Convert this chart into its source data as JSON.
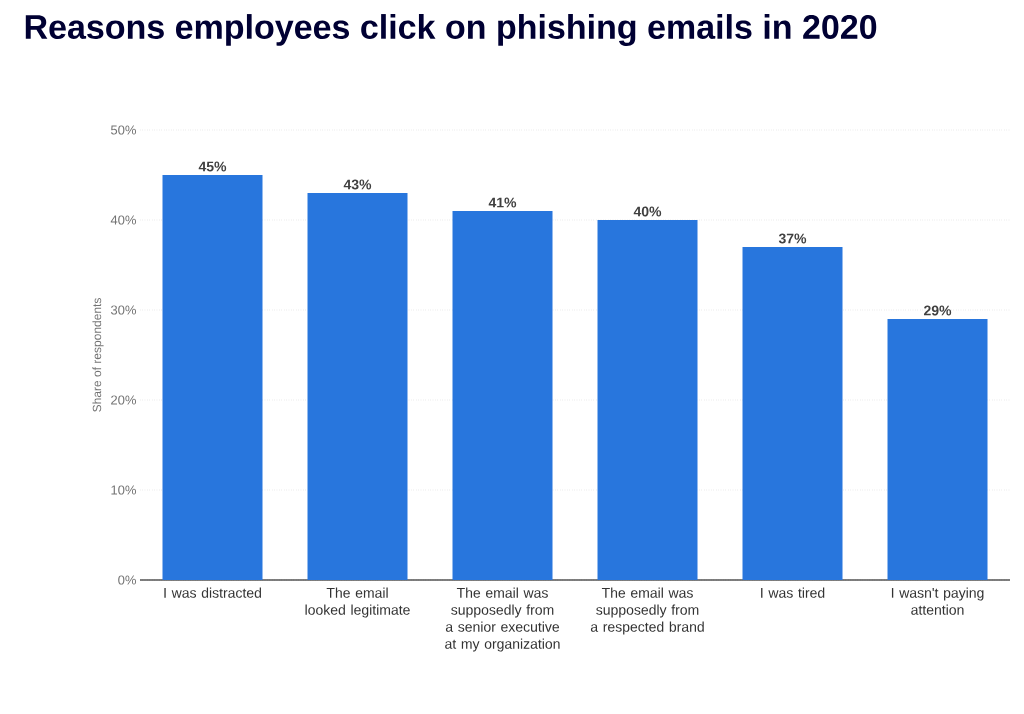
{
  "chart_data": {
    "type": "bar",
    "title": "Reasons employees click on phishing emails in 2020",
    "ylabel": "Share of respondents",
    "categories": [
      "I was distracted",
      "The email looked legitimate",
      "The email was supposedly from a senior executive at my organization",
      "The email was supposedly from a respected brand",
      "I was tired",
      "I wasn't paying attention"
    ],
    "values": [
      45,
      43,
      41,
      40,
      37,
      29
    ],
    "value_labels": [
      "45%",
      "43%",
      "41%",
      "40%",
      "37%",
      "29%"
    ],
    "color": "#2876dd",
    "ylim": [
      0,
      50
    ],
    "yticks": [
      {
        "value": 0,
        "label": "0%"
      },
      {
        "value": 10,
        "label": "10%"
      },
      {
        "value": 20,
        "label": "20%"
      },
      {
        "value": 30,
        "label": "30%"
      },
      {
        "value": 40,
        "label": "40%"
      },
      {
        "value": 50,
        "label": "50%"
      }
    ],
    "grid": "y"
  }
}
